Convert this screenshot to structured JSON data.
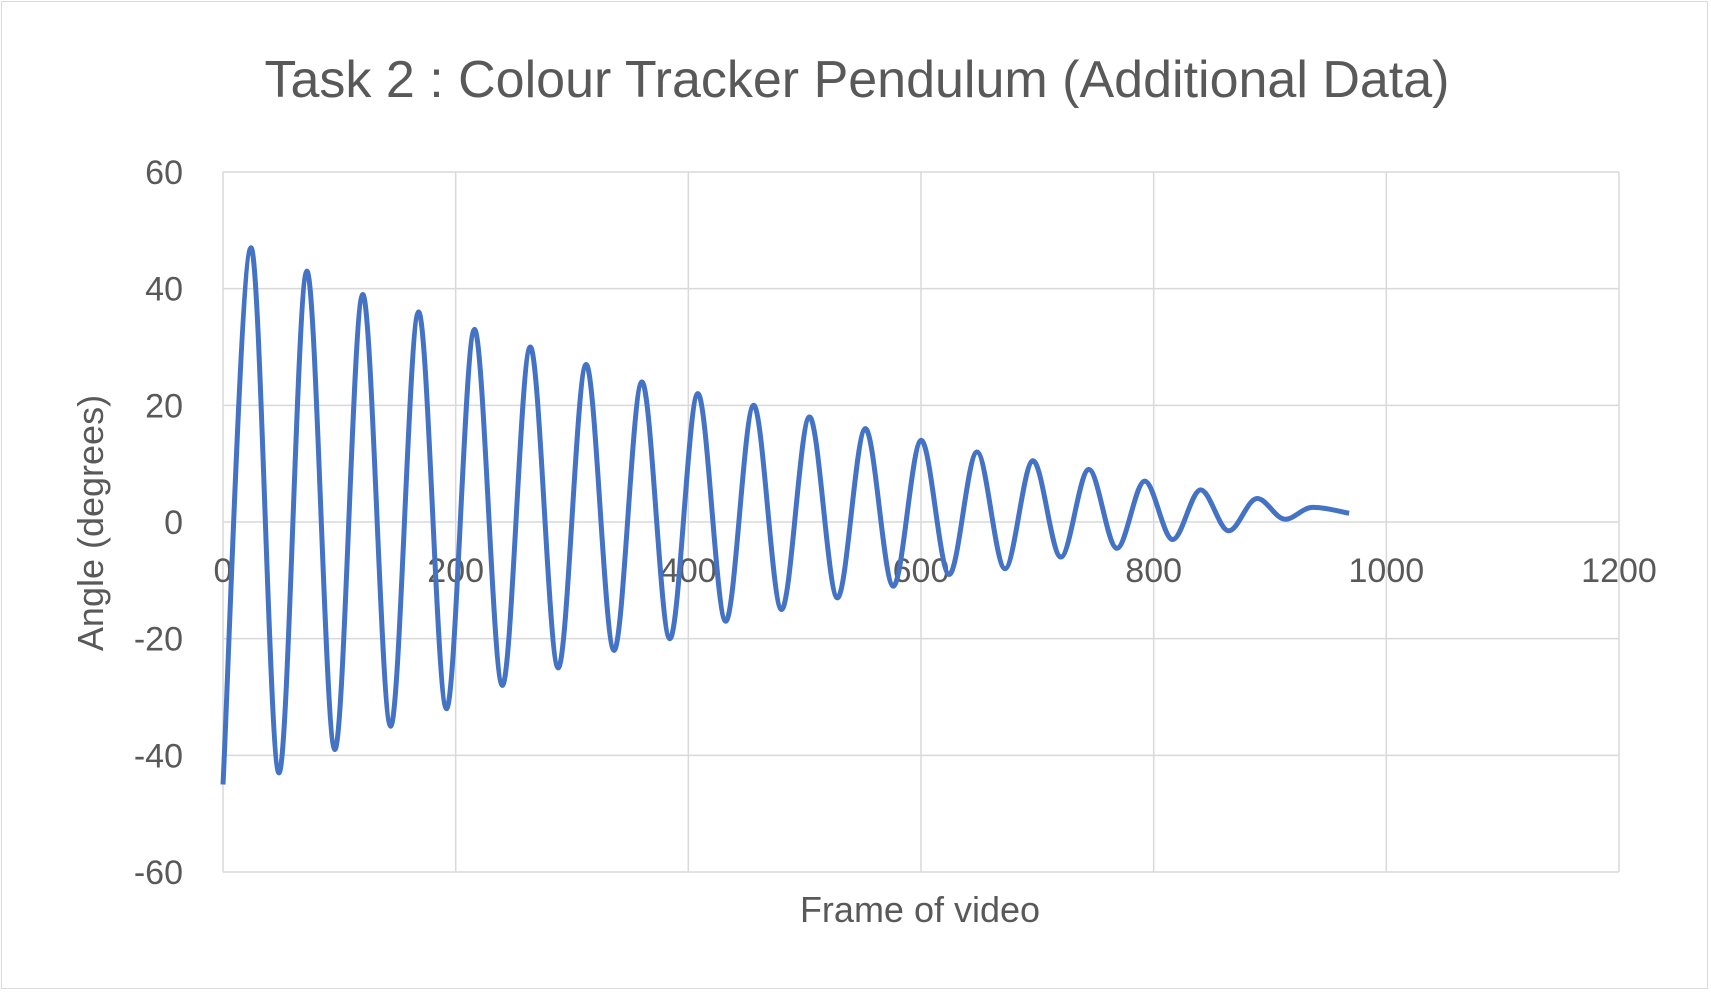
{
  "chart_data": {
    "type": "line",
    "title": "Task 2 : Colour Tracker Pendulum (Additional Data)",
    "xlabel": "Frame of video",
    "ylabel": "Angle (degrees)",
    "xlim": [
      0,
      1200
    ],
    "ylim": [
      -60,
      60
    ],
    "x_ticks": [
      "0",
      "200",
      "400",
      "600",
      "800",
      "1000",
      "1200"
    ],
    "y_ticks": [
      "60",
      "40",
      "20",
      "0",
      "-20",
      "-40",
      "-60"
    ],
    "grid": true,
    "legend": "none",
    "line_color": "#4472c4",
    "series": [
      {
        "x": [
          0,
          24,
          48,
          72,
          96,
          120,
          144,
          168,
          192,
          216,
          240,
          264,
          288,
          312,
          336,
          360,
          384,
          408,
          432,
          456,
          480,
          504,
          528,
          552,
          576,
          600,
          624,
          648,
          672,
          696,
          720,
          744,
          768,
          792,
          816,
          840,
          864,
          888,
          912,
          936,
          968
        ],
        "y": [
          -45,
          47,
          -43,
          43,
          -39,
          39,
          -35,
          36,
          -32,
          33,
          -28,
          30,
          -25,
          27,
          -22,
          24,
          -20,
          22,
          -17,
          20,
          -15,
          18,
          -13,
          16,
          -11,
          14,
          -9,
          12,
          -8,
          10.5,
          -6,
          9,
          -4.5,
          7,
          -3,
          5.5,
          -1.5,
          4,
          0.5,
          2.5,
          1.5
        ]
      }
    ]
  }
}
